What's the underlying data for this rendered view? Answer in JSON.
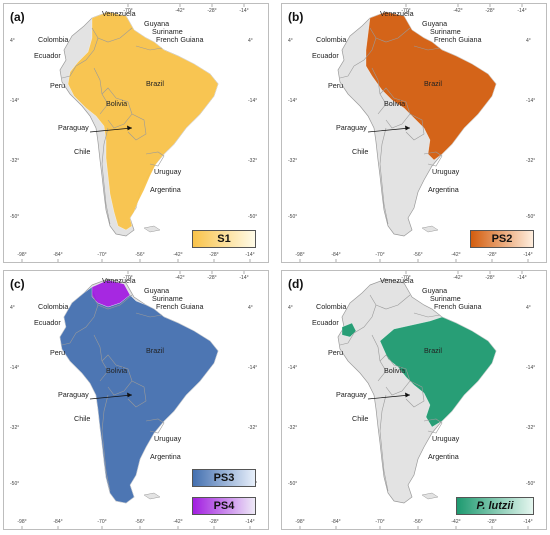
{
  "panels": [
    {
      "tag": "(a)",
      "legend": "S1",
      "color": "#f9c34a",
      "gradient_end": "#fffbe8"
    },
    {
      "tag": "(b)",
      "legend": "PS2",
      "color": "#d35d0e",
      "gradient_end": "#ffeede"
    },
    {
      "tag": "(c)",
      "legend": "PS3",
      "legend2": "PS4",
      "color": "#4470b0",
      "color2": "#a21ee0",
      "gradient_end": "#e8f0fb",
      "gradient_end2": "#eeeaf7"
    },
    {
      "tag": "(d)",
      "legend": "P. lutzii",
      "color": "#1e9a70",
      "gradient_end": "#e5f6ef"
    }
  ],
  "map_labels": {
    "venezuela": "Venezuela",
    "guyana": "Guyana",
    "suriname": "Suriname",
    "french_guiana": "French Guiana",
    "colombia": "Colombia",
    "ecuador": "Ecuador",
    "peru": "Peru",
    "brazil": "Brazil",
    "bolivia": "Bolivia",
    "paraguay": "Paraguay",
    "chile": "Chile",
    "uruguay": "Uruguay",
    "argentina": "Argentina"
  },
  "ticks": {
    "top": [
      "-70°",
      "-42°",
      "-28°",
      "-14°"
    ],
    "bottom": [
      "-98°",
      "-84°",
      "-70°",
      "-56°",
      "-42°",
      "-28°",
      "-14°"
    ],
    "left": [
      "4°",
      "-14°",
      "-32°",
      "-50°"
    ],
    "right": [
      "4°",
      "-14°",
      "-32°",
      "-50°"
    ]
  },
  "colors": {
    "land": "#e3e3e3",
    "border": "#9a9a9a",
    "frame": "#bdbdbd"
  }
}
